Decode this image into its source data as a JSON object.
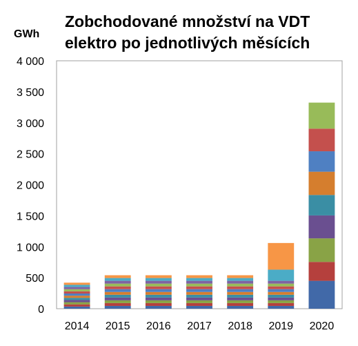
{
  "chart_data": {
    "type": "bar",
    "stacked": true,
    "title_lines": [
      "Zobchodované  množství na VDT",
      "elektro po jednotlivých měsících"
    ],
    "unit_label": "GWh",
    "ylim": [
      0,
      4000
    ],
    "y_ticks": [
      0,
      500,
      1000,
      1500,
      2000,
      2500,
      3000,
      3500,
      4000
    ],
    "y_tick_labels": [
      "0",
      "500",
      "1 000",
      "1 500",
      "2 000",
      "2 500",
      "3 000",
      "3 500",
      "4 000"
    ],
    "categories": [
      "2014",
      "2015",
      "2016",
      "2017",
      "2018",
      "2019",
      "2020"
    ],
    "grid": false,
    "legend": "none",
    "series_colors": [
      "#4169a8",
      "#b5403d",
      "#89a346",
      "#6a4f90",
      "#3a8ea4",
      "#d57e2e",
      "#4f80c2",
      "#c4504d",
      "#98bb59",
      "#7f63a2",
      "#4bacc6",
      "#f79646"
    ],
    "series": [
      {
        "values": [
          35,
          45,
          45,
          45,
          45,
          45,
          450
        ]
      },
      {
        "values": [
          35,
          45,
          45,
          45,
          45,
          45,
          305
        ]
      },
      {
        "values": [
          35,
          45,
          45,
          45,
          45,
          45,
          380
        ]
      },
      {
        "values": [
          35,
          45,
          45,
          45,
          45,
          45,
          370
        ]
      },
      {
        "values": [
          35,
          45,
          45,
          45,
          45,
          45,
          330
        ]
      },
      {
        "values": [
          35,
          45,
          45,
          45,
          45,
          45,
          375
        ]
      },
      {
        "values": [
          35,
          45,
          45,
          45,
          45,
          45,
          330
        ]
      },
      {
        "values": [
          35,
          45,
          45,
          45,
          45,
          45,
          365
        ]
      },
      {
        "values": [
          35,
          45,
          45,
          45,
          45,
          45,
          420
        ]
      },
      {
        "values": [
          35,
          45,
          45,
          45,
          45,
          45,
          0
        ]
      },
      {
        "values": [
          35,
          45,
          45,
          45,
          45,
          180,
          0
        ]
      },
      {
        "values": [
          35,
          45,
          45,
          45,
          45,
          430,
          0
        ]
      }
    ]
  }
}
